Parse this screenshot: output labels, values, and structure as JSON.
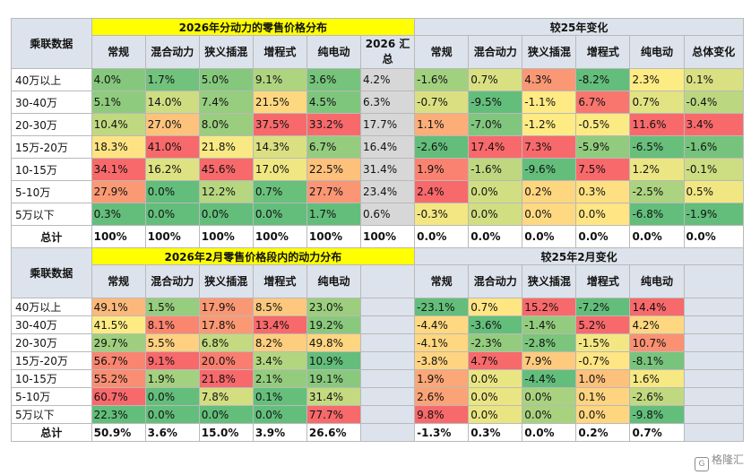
{
  "top": {
    "title_main": "2026年分动力的零售价格分布",
    "title_change": "较25年变化",
    "corner": "乘联数据",
    "headers_main": [
      "常规",
      "混合动力",
      "狭义插混",
      "增程式",
      "纯电动",
      "2026 汇总"
    ],
    "headers_change": [
      "常规",
      "混合动力",
      "狭义插混",
      "增程式",
      "纯电动",
      "总体变化"
    ],
    "rows": [
      {
        "label": "40万以上",
        "main": [
          "4.0%",
          "1.7%",
          "5.0%",
          "9.1%",
          "3.6%",
          "4.2%"
        ],
        "change": [
          "-1.6%",
          "0.7%",
          "4.3%",
          "-8.2%",
          "2.3%",
          "0.1%"
        ]
      },
      {
        "label": "30-40万",
        "main": [
          "5.1%",
          "14.0%",
          "7.4%",
          "21.5%",
          "4.5%",
          "6.3%"
        ],
        "change": [
          "-0.7%",
          "-9.5%",
          "-1.1%",
          "6.7%",
          "0.7%",
          "-0.4%"
        ]
      },
      {
        "label": "20-30万",
        "main": [
          "10.4%",
          "27.0%",
          "8.0%",
          "37.5%",
          "33.2%",
          "17.7%"
        ],
        "change": [
          "1.1%",
          "-7.0%",
          "-1.2%",
          "-0.5%",
          "11.6%",
          "3.4%"
        ]
      },
      {
        "label": "15万-20万",
        "main": [
          "18.3%",
          "41.0%",
          "21.8%",
          "14.3%",
          "6.7%",
          "16.4%"
        ],
        "change": [
          "-2.6%",
          "17.4%",
          "7.3%",
          "-5.9%",
          "-6.5%",
          "-1.6%"
        ]
      },
      {
        "label": "10-15万",
        "main": [
          "34.1%",
          "16.2%",
          "45.6%",
          "17.0%",
          "22.5%",
          "31.4%"
        ],
        "change": [
          "1.9%",
          "-1.6%",
          "-9.6%",
          "7.5%",
          "1.2%",
          "-0.1%"
        ]
      },
      {
        "label": "5-10万",
        "main": [
          "27.9%",
          "0.0%",
          "12.2%",
          "0.7%",
          "27.7%",
          "23.4%"
        ],
        "change": [
          "2.4%",
          "0.0%",
          "0.2%",
          "0.3%",
          "-2.5%",
          "0.5%"
        ]
      },
      {
        "label": "5万以下",
        "main": [
          "0.3%",
          "0.0%",
          "0.0%",
          "0.0%",
          "1.7%",
          "0.6%"
        ],
        "change": [
          "-0.3%",
          "0.0%",
          "0.0%",
          "0.0%",
          "-6.8%",
          "-1.9%"
        ]
      }
    ],
    "total": {
      "label": "总计",
      "main": [
        "100%",
        "100%",
        "100%",
        "100%",
        "100%",
        "100%"
      ],
      "change": [
        "0.0%",
        "0.0%",
        "0.0%",
        "0.0%",
        "0.0%",
        "0.0%"
      ]
    }
  },
  "bottom": {
    "title_main": "2026年2月零售价格段内的动力分布",
    "title_change": "较25年2月变化",
    "corner": "乘联数据",
    "headers_main": [
      "常规",
      "混合动力",
      "狭义插混",
      "增程式",
      "纯电动"
    ],
    "headers_change": [
      "常规",
      "混合动力",
      "狭义插混",
      "增程式",
      "纯电动"
    ],
    "rows": [
      {
        "label": "40万以上",
        "main": [
          "49.1%",
          "1.5%",
          "17.9%",
          "8.5%",
          "23.0%"
        ],
        "change": [
          "-23.1%",
          "0.7%",
          "15.2%",
          "-7.2%",
          "14.4%"
        ]
      },
      {
        "label": "30-40万",
        "main": [
          "41.5%",
          "8.1%",
          "17.8%",
          "13.4%",
          "19.2%"
        ],
        "change": [
          "-4.4%",
          "-3.6%",
          "-1.4%",
          "5.2%",
          "4.2%"
        ]
      },
      {
        "label": "20-30万",
        "main": [
          "29.7%",
          "5.5%",
          "6.8%",
          "8.2%",
          "49.8%"
        ],
        "change": [
          "-4.1%",
          "-2.3%",
          "-2.8%",
          "-1.5%",
          "10.7%"
        ]
      },
      {
        "label": "15万-20万",
        "main": [
          "56.7%",
          "9.1%",
          "20.0%",
          "3.4%",
          "10.9%"
        ],
        "change": [
          "-3.8%",
          "4.7%",
          "7.9%",
          "-0.7%",
          "-8.1%"
        ]
      },
      {
        "label": "10-15万",
        "main": [
          "55.2%",
          "1.9%",
          "21.8%",
          "2.1%",
          "19.1%"
        ],
        "change": [
          "1.9%",
          "0.0%",
          "-4.4%",
          "1.0%",
          "1.6%"
        ]
      },
      {
        "label": "5-10万",
        "main": [
          "60.7%",
          "0.0%",
          "7.8%",
          "0.1%",
          "31.4%"
        ],
        "change": [
          "2.6%",
          "0.0%",
          "0.0%",
          "0.1%",
          "-2.6%"
        ]
      },
      {
        "label": "5万以下",
        "main": [
          "22.3%",
          "0.0%",
          "0.0%",
          "0.0%",
          "77.7%"
        ],
        "change": [
          "9.8%",
          "0.0%",
          "0.0%",
          "0.0%",
          "-9.8%"
        ]
      }
    ],
    "total": {
      "label": "总计",
      "main": [
        "50.9%",
        "3.6%",
        "15.0%",
        "3.9%",
        "26.6%"
      ],
      "change": [
        "-1.3%",
        "0.3%",
        "0.0%",
        "0.2%",
        "0.7%"
      ]
    }
  },
  "watermark": "格隆汇",
  "colors": {
    "title_bg": "#ffff00",
    "title_text": "#c00000",
    "header_bg": "#dde3ec",
    "summary_col_bg": "#d7d7d7",
    "scale_low": "#63be7b",
    "scale_mid": "#ffeb84",
    "scale_high": "#f8696b"
  }
}
